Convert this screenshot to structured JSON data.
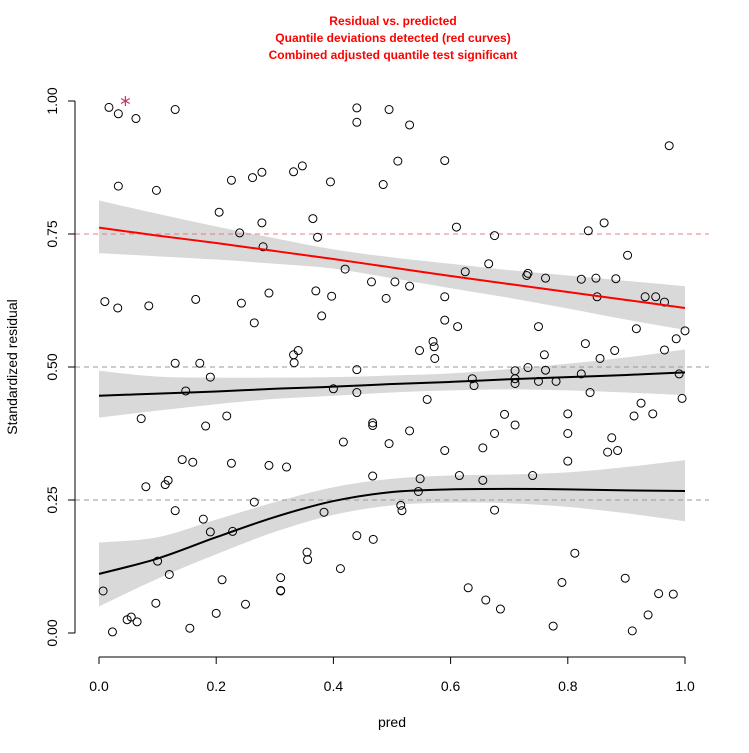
{
  "chart_data": {
    "type": "scatter",
    "title": [
      "Residual vs. predicted",
      "Quantile deviations detected (red curves)",
      "Combined adjusted quantile test significant"
    ],
    "xlabel": "pred",
    "ylabel": "Standardized residual",
    "xlim": [
      0,
      1
    ],
    "ylim": [
      0,
      1
    ],
    "x_ticks": [
      0.0,
      0.2,
      0.4,
      0.6,
      0.8,
      1.0
    ],
    "x_tick_labels": [
      "0.0",
      "0.2",
      "0.4",
      "0.6",
      "0.8",
      "1.0"
    ],
    "y_ticks": [
      0.0,
      0.25,
      0.5,
      0.75,
      1.0
    ],
    "y_tick_labels": [
      "0.00",
      "0.25",
      "0.50",
      "0.75",
      "1.00"
    ],
    "reference_lines": [
      0.25,
      0.5,
      0.75
    ],
    "colors": {
      "title": "#ff0000",
      "deviating_quantile": "#ff0000",
      "quantile": "#000000",
      "band": "#d9d9d9",
      "ref_line_highlight": "#e08080",
      "ref_line": "#999999",
      "outlier": "#cc3366"
    },
    "outliers": [
      [
        0.045,
        1.0
      ]
    ],
    "quantile_curves": [
      {
        "quantile": 0.75,
        "deviating": true,
        "x": [
          0,
          0.1,
          0.2,
          0.3,
          0.4,
          0.5,
          0.6,
          0.7,
          0.8,
          0.9,
          1.0
        ],
        "y": [
          0.762,
          0.747,
          0.733,
          0.718,
          0.703,
          0.687,
          0.671,
          0.656,
          0.641,
          0.626,
          0.611
        ],
        "lower": [
          0.714,
          0.708,
          0.702,
          0.694,
          0.685,
          0.667,
          0.648,
          0.63,
          0.61,
          0.589,
          0.57
        ],
        "upper": [
          0.813,
          0.788,
          0.764,
          0.742,
          0.721,
          0.706,
          0.694,
          0.682,
          0.672,
          0.662,
          0.652
        ]
      },
      {
        "quantile": 0.5,
        "deviating": false,
        "x": [
          0,
          0.1,
          0.2,
          0.3,
          0.4,
          0.5,
          0.6,
          0.7,
          0.8,
          0.9,
          1.0
        ],
        "y": [
          0.446,
          0.45,
          0.454,
          0.459,
          0.463,
          0.468,
          0.472,
          0.477,
          0.481,
          0.485,
          0.49
        ],
        "lower": [
          0.405,
          0.418,
          0.43,
          0.44,
          0.446,
          0.452,
          0.456,
          0.458,
          0.456,
          0.452,
          0.447
        ],
        "upper": [
          0.493,
          0.482,
          0.48,
          0.48,
          0.481,
          0.484,
          0.488,
          0.496,
          0.506,
          0.518,
          0.533
        ]
      },
      {
        "quantile": 0.25,
        "deviating": false,
        "x": [
          0,
          0.1,
          0.2,
          0.3,
          0.4,
          0.5,
          0.6,
          0.7,
          0.8,
          0.9,
          1.0
        ],
        "y": [
          0.111,
          0.14,
          0.18,
          0.218,
          0.248,
          0.265,
          0.27,
          0.271,
          0.27,
          0.268,
          0.267
        ],
        "lower": [
          0.05,
          0.102,
          0.148,
          0.19,
          0.222,
          0.24,
          0.245,
          0.244,
          0.237,
          0.225,
          0.21
        ],
        "upper": [
          0.17,
          0.18,
          0.213,
          0.246,
          0.274,
          0.29,
          0.296,
          0.298,
          0.302,
          0.312,
          0.325
        ]
      }
    ],
    "points": [
      [
        0.017,
        0.988
      ],
      [
        0.033,
        0.976
      ],
      [
        0.063,
        0.967
      ],
      [
        0.033,
        0.84
      ],
      [
        0.13,
        0.984
      ],
      [
        0.098,
        0.832
      ],
      [
        0.01,
        0.623
      ],
      [
        0.032,
        0.611
      ],
      [
        0.085,
        0.615
      ],
      [
        0.072,
        0.403
      ],
      [
        0.08,
        0.275
      ],
      [
        0.113,
        0.279
      ],
      [
        0.118,
        0.287
      ],
      [
        0.13,
        0.507
      ],
      [
        0.13,
        0.23
      ],
      [
        0.148,
        0.455
      ],
      [
        0.142,
        0.326
      ],
      [
        0.16,
        0.321
      ],
      [
        0.165,
        0.627
      ],
      [
        0.172,
        0.507
      ],
      [
        0.178,
        0.214
      ],
      [
        0.182,
        0.389
      ],
      [
        0.19,
        0.481
      ],
      [
        0.19,
        0.19
      ],
      [
        0.205,
        0.791
      ],
      [
        0.218,
        0.408
      ],
      [
        0.226,
        0.851
      ],
      [
        0.226,
        0.319
      ],
      [
        0.228,
        0.191
      ],
      [
        0.24,
        0.752
      ],
      [
        0.243,
        0.62
      ],
      [
        0.262,
        0.856
      ],
      [
        0.265,
        0.583
      ],
      [
        0.265,
        0.246
      ],
      [
        0.278,
        0.866
      ],
      [
        0.278,
        0.771
      ],
      [
        0.28,
        0.726
      ],
      [
        0.29,
        0.639
      ],
      [
        0.29,
        0.315
      ],
      [
        0.31,
        0.104
      ],
      [
        0.31,
        0.08
      ],
      [
        0.31,
        0.079
      ],
      [
        0.32,
        0.312
      ],
      [
        0.332,
        0.867
      ],
      [
        0.332,
        0.523
      ],
      [
        0.333,
        0.508
      ],
      [
        0.34,
        0.531
      ],
      [
        0.347,
        0.878
      ],
      [
        0.355,
        0.152
      ],
      [
        0.356,
        0.138
      ],
      [
        0.365,
        0.779
      ],
      [
        0.37,
        0.643
      ],
      [
        0.373,
        0.744
      ],
      [
        0.38,
        0.596
      ],
      [
        0.384,
        0.227
      ],
      [
        0.395,
        0.848
      ],
      [
        0.397,
        0.633
      ],
      [
        0.4,
        0.459
      ],
      [
        0.412,
        0.121
      ],
      [
        0.417,
        0.359
      ],
      [
        0.42,
        0.684
      ],
      [
        0.44,
        0.987
      ],
      [
        0.44,
        0.96
      ],
      [
        0.44,
        0.495
      ],
      [
        0.44,
        0.452
      ],
      [
        0.44,
        0.183
      ],
      [
        0.465,
        0.66
      ],
      [
        0.467,
        0.395
      ],
      [
        0.467,
        0.39
      ],
      [
        0.467,
        0.295
      ],
      [
        0.468,
        0.176
      ],
      [
        0.485,
        0.843
      ],
      [
        0.49,
        0.629
      ],
      [
        0.495,
        0.984
      ],
      [
        0.495,
        0.356
      ],
      [
        0.505,
        0.66
      ],
      [
        0.51,
        0.887
      ],
      [
        0.515,
        0.24
      ],
      [
        0.517,
        0.23
      ],
      [
        0.53,
        0.955
      ],
      [
        0.53,
        0.652
      ],
      [
        0.53,
        0.38
      ],
      [
        0.545,
        0.266
      ],
      [
        0.547,
        0.531
      ],
      [
        0.548,
        0.29
      ],
      [
        0.56,
        0.439
      ],
      [
        0.57,
        0.548
      ],
      [
        0.572,
        0.538
      ],
      [
        0.573,
        0.516
      ],
      [
        0.59,
        0.888
      ],
      [
        0.59,
        0.632
      ],
      [
        0.59,
        0.588
      ],
      [
        0.59,
        0.343
      ],
      [
        0.61,
        0.763
      ],
      [
        0.612,
        0.576
      ],
      [
        0.615,
        0.296
      ],
      [
        0.625,
        0.679
      ],
      [
        0.63,
        0.085
      ],
      [
        0.637,
        0.478
      ],
      [
        0.64,
        0.465
      ],
      [
        0.655,
        0.348
      ],
      [
        0.655,
        0.287
      ],
      [
        0.66,
        0.062
      ],
      [
        0.665,
        0.694
      ],
      [
        0.675,
        0.747
      ],
      [
        0.675,
        0.375
      ],
      [
        0.675,
        0.231
      ],
      [
        0.685,
        0.045
      ],
      [
        0.692,
        0.411
      ],
      [
        0.71,
        0.493
      ],
      [
        0.71,
        0.478
      ],
      [
        0.71,
        0.469
      ],
      [
        0.71,
        0.391
      ],
      [
        0.73,
        0.672
      ],
      [
        0.732,
        0.676
      ],
      [
        0.732,
        0.499
      ],
      [
        0.74,
        0.296
      ],
      [
        0.75,
        0.576
      ],
      [
        0.75,
        0.473
      ],
      [
        0.76,
        0.523
      ],
      [
        0.762,
        0.494
      ],
      [
        0.762,
        0.667
      ],
      [
        0.775,
        0.013
      ],
      [
        0.78,
        0.473
      ],
      [
        0.79,
        0.095
      ],
      [
        0.8,
        0.412
      ],
      [
        0.8,
        0.375
      ],
      [
        0.8,
        0.323
      ],
      [
        0.812,
        0.15
      ],
      [
        0.823,
        0.487
      ],
      [
        0.823,
        0.665
      ],
      [
        0.83,
        0.544
      ],
      [
        0.835,
        0.756
      ],
      [
        0.838,
        0.452
      ],
      [
        0.848,
        0.667
      ],
      [
        0.85,
        0.632
      ],
      [
        0.855,
        0.516
      ],
      [
        0.862,
        0.771
      ],
      [
        0.868,
        0.34
      ],
      [
        0.875,
        0.367
      ],
      [
        0.88,
        0.531
      ],
      [
        0.882,
        0.666
      ],
      [
        0.885,
        0.343
      ],
      [
        0.898,
        0.103
      ],
      [
        0.902,
        0.71
      ],
      [
        0.91,
        0.004
      ],
      [
        0.913,
        0.408
      ],
      [
        0.917,
        0.572
      ],
      [
        0.925,
        0.432
      ],
      [
        0.932,
        0.632
      ],
      [
        0.937,
        0.034
      ],
      [
        0.945,
        0.412
      ],
      [
        0.95,
        0.632
      ],
      [
        0.955,
        0.074
      ],
      [
        0.965,
        0.622
      ],
      [
        0.965,
        0.532
      ],
      [
        0.973,
        0.916
      ],
      [
        0.98,
        0.073
      ],
      [
        0.985,
        0.553
      ],
      [
        0.99,
        0.487
      ],
      [
        0.995,
        0.441
      ],
      [
        1.0,
        0.568
      ],
      [
        0.007,
        0.079
      ],
      [
        0.023,
        0.002
      ],
      [
        0.048,
        0.025
      ],
      [
        0.055,
        0.03
      ],
      [
        0.065,
        0.021
      ],
      [
        0.097,
        0.056
      ],
      [
        0.1,
        0.135
      ],
      [
        0.12,
        0.11
      ],
      [
        0.155,
        0.009
      ],
      [
        0.2,
        0.037
      ],
      [
        0.21,
        0.1
      ],
      [
        0.25,
        0.054
      ]
    ]
  }
}
